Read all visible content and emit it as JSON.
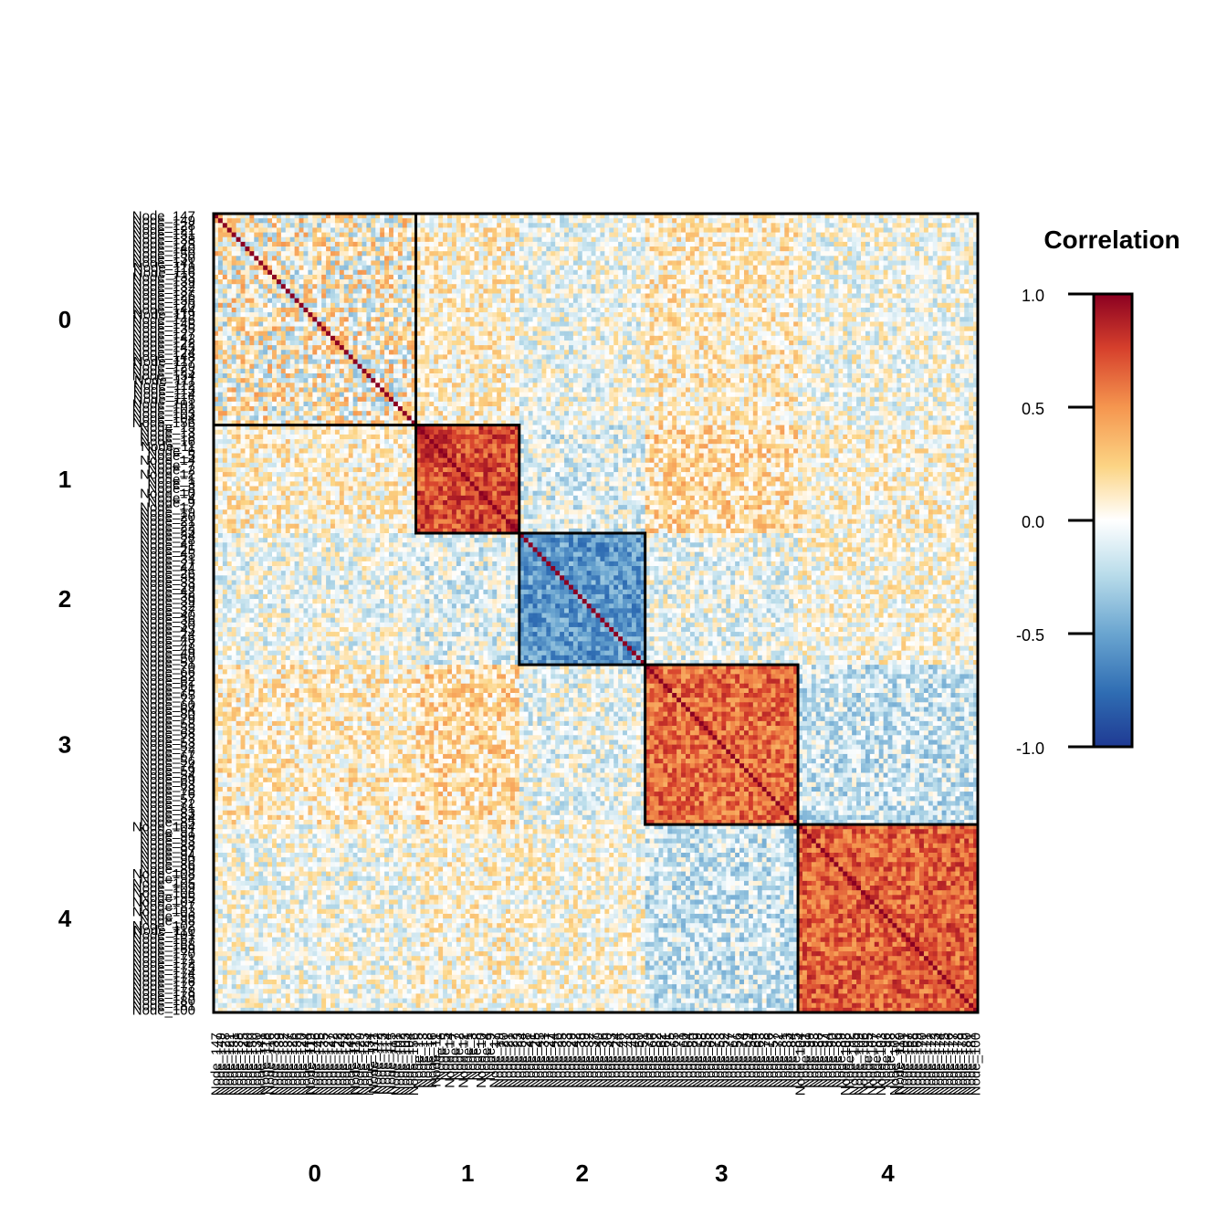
{
  "chart_data": {
    "type": "heatmap",
    "legend_title": "Correlation",
    "legend_ticks": [
      "1.0",
      "0.5",
      "0.0",
      "-0.5",
      "-1.0"
    ],
    "value_range": [
      -1.0,
      1.0
    ],
    "colors": {
      "low": "#1f3a93",
      "mid": "#ffffff",
      "high": "#8b0021",
      "border": "#000000"
    },
    "groups": [
      {
        "label": "0",
        "size": 45,
        "within_corr": 0.05
      },
      {
        "label": "1",
        "size": 23,
        "within_corr": 0.72
      },
      {
        "label": "2",
        "size": 28,
        "within_corr": -0.55
      },
      {
        "label": "3",
        "size": 34,
        "within_corr": 0.62
      },
      {
        "label": "4",
        "size": 40,
        "within_corr": 0.66
      }
    ],
    "between_groups_corr": [
      [
        0.0,
        0.08,
        -0.04,
        0.1,
        -0.02
      ],
      [
        0.08,
        0.0,
        -0.1,
        0.2,
        0.05
      ],
      [
        -0.04,
        -0.1,
        0.0,
        -0.06,
        0.02
      ],
      [
        0.1,
        0.2,
        -0.06,
        0.0,
        -0.18
      ],
      [
        -0.02,
        0.05,
        0.02,
        -0.18,
        0.0
      ]
    ],
    "diagonal_value": 1.0,
    "row_labels": [
      "Node_147",
      "Node_149",
      "Node_128",
      "Node_121",
      "Node_131",
      "Node_138",
      "Node_125",
      "Node_140",
      "Node_150",
      "Node_130",
      "Node_141",
      "Node_118",
      "Node_116",
      "Node_133",
      "Node_139",
      "Node_132",
      "Node_137",
      "Node_126",
      "Node_136",
      "Node_120",
      "Node_144",
      "Node_119",
      "Node_146",
      "Node_145",
      "Node_135",
      "Node_127",
      "Node_142",
      "Node_122",
      "Node_143",
      "Node_124",
      "Node_148",
      "Node_117",
      "Node_129",
      "Node_123",
      "Node_134",
      "Node_111",
      "Node_112",
      "Node_113",
      "Node_114",
      "Node_115",
      "Node_101",
      "Node_102",
      "Node_103",
      "Node_104",
      "Node_156",
      "Node_15",
      "Node_13",
      "Node_18",
      "Node_16",
      "Node_11",
      "Node_6",
      "Node_5",
      "Node_14",
      "Node_7",
      "Node_2",
      "Node_12",
      "Node_1",
      "Node_3",
      "Node_8",
      "Node_10",
      "Node_4",
      "Node_9",
      "Node_17",
      "Node_19",
      "Node_20",
      "Node_21",
      "Node_22",
      "Node_23",
      "Node_34",
      "Node_28",
      "Node_41",
      "Node_25",
      "Node_45",
      "Node_31",
      "Node_27",
      "Node_44",
      "Node_26",
      "Node_35",
      "Node_33",
      "Node_29",
      "Node_42",
      "Node_38",
      "Node_39",
      "Node_32",
      "Node_37",
      "Node_40",
      "Node_36",
      "Node_30",
      "Node_43",
      "Node_24",
      "Node_46",
      "Node_47",
      "Node_48",
      "Node_49",
      "Node_50",
      "Node_51",
      "Node_70",
      "Node_66",
      "Node_82",
      "Node_62",
      "Node_61",
      "Node_75",
      "Node_65",
      "Node_71",
      "Node_60",
      "Node_64",
      "Node_80",
      "Node_79",
      "Node_58",
      "Node_55",
      "Node_68",
      "Node_73",
      "Node_53",
      "Node_52",
      "Node_77",
      "Node_67",
      "Node_56",
      "Node_74",
      "Node_59",
      "Node_54",
      "Node_69",
      "Node_63",
      "Node_78",
      "Node_76",
      "Node_57",
      "Node_72",
      "Node_81",
      "Node_83",
      "Node_84",
      "Node_85",
      "Node_104",
      "Node_91",
      "Node_99",
      "Node_93",
      "Node_88",
      "Node_97",
      "Node_94",
      "Node_90",
      "Node_86",
      "Node_89",
      "Node_108",
      "Node_92",
      "Node_105",
      "Node_109",
      "Node_106",
      "Node_95",
      "Node_107",
      "Node_87",
      "Node_103",
      "Node_96",
      "Node_98",
      "Node_102",
      "Node_110",
      "Node_101",
      "Node_167",
      "Node_168",
      "Node_169",
      "Node_170",
      "Node_171",
      "Node_172",
      "Node_173",
      "Node_174",
      "Node_175",
      "Node_176",
      "Node_177",
      "Node_178",
      "Node_179",
      "Node_180",
      "Node_181",
      "Node_100"
    ]
  }
}
